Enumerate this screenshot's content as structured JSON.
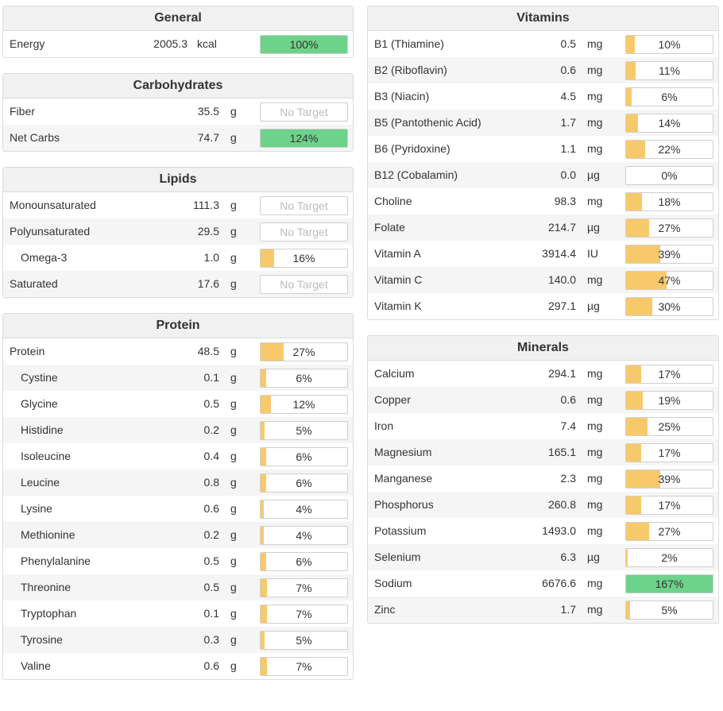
{
  "general": {
    "title": "General",
    "rows": [
      {
        "name": "Energy",
        "amount": "2005.3",
        "unit": "kcal",
        "pct_label": "100%",
        "pct": 100,
        "target": true
      }
    ]
  },
  "carbohydrates": {
    "title": "Carbohydrates",
    "rows": [
      {
        "name": "Fiber",
        "amount": "35.5",
        "unit": "g",
        "pct_label": "No Target",
        "pct": 0,
        "target": false
      },
      {
        "name": "Net Carbs",
        "amount": "74.7",
        "unit": "g",
        "pct_label": "124%",
        "pct": 124,
        "target": true
      }
    ]
  },
  "lipids": {
    "title": "Lipids",
    "rows": [
      {
        "name": "Monounsaturated",
        "amount": "111.3",
        "unit": "g",
        "pct_label": "No Target",
        "pct": 0,
        "target": false
      },
      {
        "name": "Polyunsaturated",
        "amount": "29.5",
        "unit": "g",
        "pct_label": "No Target",
        "pct": 0,
        "target": false
      },
      {
        "name": "Omega-3",
        "amount": "1.0",
        "unit": "g",
        "pct_label": "16%",
        "pct": 16,
        "target": true,
        "indent": true
      },
      {
        "name": "Saturated",
        "amount": "17.6",
        "unit": "g",
        "pct_label": "No Target",
        "pct": 0,
        "target": false
      }
    ]
  },
  "protein": {
    "title": "Protein",
    "rows": [
      {
        "name": "Protein",
        "amount": "48.5",
        "unit": "g",
        "pct_label": "27%",
        "pct": 27,
        "target": true
      },
      {
        "name": "Cystine",
        "amount": "0.1",
        "unit": "g",
        "pct_label": "6%",
        "pct": 6,
        "target": true,
        "indent": true
      },
      {
        "name": "Glycine",
        "amount": "0.5",
        "unit": "g",
        "pct_label": "12%",
        "pct": 12,
        "target": true,
        "indent": true
      },
      {
        "name": "Histidine",
        "amount": "0.2",
        "unit": "g",
        "pct_label": "5%",
        "pct": 5,
        "target": true,
        "indent": true
      },
      {
        "name": "Isoleucine",
        "amount": "0.4",
        "unit": "g",
        "pct_label": "6%",
        "pct": 6,
        "target": true,
        "indent": true
      },
      {
        "name": "Leucine",
        "amount": "0.8",
        "unit": "g",
        "pct_label": "6%",
        "pct": 6,
        "target": true,
        "indent": true
      },
      {
        "name": "Lysine",
        "amount": "0.6",
        "unit": "g",
        "pct_label": "4%",
        "pct": 4,
        "target": true,
        "indent": true
      },
      {
        "name": "Methionine",
        "amount": "0.2",
        "unit": "g",
        "pct_label": "4%",
        "pct": 4,
        "target": true,
        "indent": true
      },
      {
        "name": "Phenylalanine",
        "amount": "0.5",
        "unit": "g",
        "pct_label": "6%",
        "pct": 6,
        "target": true,
        "indent": true
      },
      {
        "name": "Threonine",
        "amount": "0.5",
        "unit": "g",
        "pct_label": "7%",
        "pct": 7,
        "target": true,
        "indent": true
      },
      {
        "name": "Tryptophan",
        "amount": "0.1",
        "unit": "g",
        "pct_label": "7%",
        "pct": 7,
        "target": true,
        "indent": true
      },
      {
        "name": "Tyrosine",
        "amount": "0.3",
        "unit": "g",
        "pct_label": "5%",
        "pct": 5,
        "target": true,
        "indent": true
      },
      {
        "name": "Valine",
        "amount": "0.6",
        "unit": "g",
        "pct_label": "7%",
        "pct": 7,
        "target": true,
        "indent": true
      }
    ]
  },
  "vitamins": {
    "title": "Vitamins",
    "rows": [
      {
        "name": "B1 (Thiamine)",
        "amount": "0.5",
        "unit": "mg",
        "pct_label": "10%",
        "pct": 10,
        "target": true
      },
      {
        "name": "B2 (Riboflavin)",
        "amount": "0.6",
        "unit": "mg",
        "pct_label": "11%",
        "pct": 11,
        "target": true
      },
      {
        "name": "B3 (Niacin)",
        "amount": "4.5",
        "unit": "mg",
        "pct_label": "6%",
        "pct": 6,
        "target": true
      },
      {
        "name": "B5 (Pantothenic Acid)",
        "amount": "1.7",
        "unit": "mg",
        "pct_label": "14%",
        "pct": 14,
        "target": true
      },
      {
        "name": "B6 (Pyridoxine)",
        "amount": "1.1",
        "unit": "mg",
        "pct_label": "22%",
        "pct": 22,
        "target": true
      },
      {
        "name": "B12 (Cobalamin)",
        "amount": "0.0",
        "unit": "µg",
        "pct_label": "0%",
        "pct": 0,
        "target": true
      },
      {
        "name": "Choline",
        "amount": "98.3",
        "unit": "mg",
        "pct_label": "18%",
        "pct": 18,
        "target": true
      },
      {
        "name": "Folate",
        "amount": "214.7",
        "unit": "µg",
        "pct_label": "27%",
        "pct": 27,
        "target": true
      },
      {
        "name": "Vitamin A",
        "amount": "3914.4",
        "unit": "IU",
        "pct_label": "39%",
        "pct": 39,
        "target": true
      },
      {
        "name": "Vitamin C",
        "amount": "140.0",
        "unit": "mg",
        "pct_label": "47%",
        "pct": 47,
        "target": true
      },
      {
        "name": "Vitamin K",
        "amount": "297.1",
        "unit": "µg",
        "pct_label": "30%",
        "pct": 30,
        "target": true
      }
    ]
  },
  "minerals": {
    "title": "Minerals",
    "rows": [
      {
        "name": "Calcium",
        "amount": "294.1",
        "unit": "mg",
        "pct_label": "17%",
        "pct": 17,
        "target": true
      },
      {
        "name": "Copper",
        "amount": "0.6",
        "unit": "mg",
        "pct_label": "19%",
        "pct": 19,
        "target": true
      },
      {
        "name": "Iron",
        "amount": "7.4",
        "unit": "mg",
        "pct_label": "25%",
        "pct": 25,
        "target": true
      },
      {
        "name": "Magnesium",
        "amount": "165.1",
        "unit": "mg",
        "pct_label": "17%",
        "pct": 17,
        "target": true
      },
      {
        "name": "Manganese",
        "amount": "2.3",
        "unit": "mg",
        "pct_label": "39%",
        "pct": 39,
        "target": true
      },
      {
        "name": "Phosphorus",
        "amount": "260.8",
        "unit": "mg",
        "pct_label": "17%",
        "pct": 17,
        "target": true
      },
      {
        "name": "Potassium",
        "amount": "1493.0",
        "unit": "mg",
        "pct_label": "27%",
        "pct": 27,
        "target": true
      },
      {
        "name": "Selenium",
        "amount": "6.3",
        "unit": "µg",
        "pct_label": "2%",
        "pct": 2,
        "target": true
      },
      {
        "name": "Sodium",
        "amount": "6676.6",
        "unit": "mg",
        "pct_label": "167%",
        "pct": 167,
        "target": true
      },
      {
        "name": "Zinc",
        "amount": "1.7",
        "unit": "mg",
        "pct_label": "5%",
        "pct": 5,
        "target": true
      }
    ]
  },
  "colors": {
    "bar_partial": "#f8c96b",
    "bar_complete": "#6dd28a",
    "no_target_text": "#bbbbbb"
  }
}
